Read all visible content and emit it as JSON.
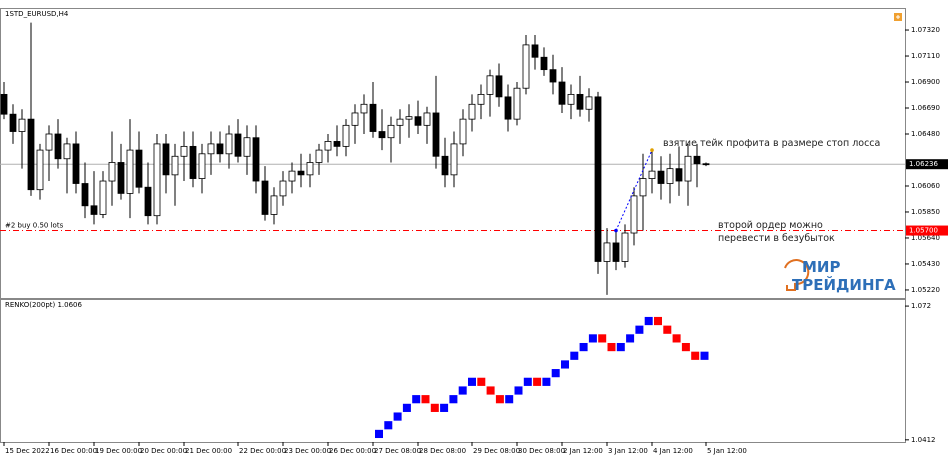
{
  "chart_data": [
    {
      "type": "candlestick",
      "title": "1STD_EURUSD,H4",
      "bull_color": "#ffffff",
      "bear_color": "#000000",
      "ylim": [
        1.05155,
        1.07498
      ],
      "yticks": [
        {
          "value": 1.0732,
          "label": "1.07320"
        },
        {
          "value": 1.0711,
          "label": "1.07110"
        },
        {
          "value": 1.069,
          "label": "1.06900"
        },
        {
          "value": 1.0669,
          "label": "1.06690"
        },
        {
          "value": 1.0648,
          "label": "1.06480"
        },
        {
          "value": 1.0606,
          "label": "1.06060"
        },
        {
          "value": 1.0585,
          "label": "1.05850"
        },
        {
          "value": 1.0564,
          "label": "1.05640"
        },
        {
          "value": 1.0543,
          "label": "1.05430"
        },
        {
          "value": 1.0522,
          "label": "1.05220"
        }
      ],
      "current_price": {
        "value": 1.06236,
        "label": "1.06236"
      },
      "order": {
        "text": "#2 buy 0.50 lots",
        "value": 1.057,
        "label": "1.05700",
        "color": "#ff0000"
      },
      "trade_arrow": {
        "from": 1.057,
        "to": 1.0635,
        "color": "#0000ff"
      },
      "annotations": [
        "взятие тейк профита в размере стоп лосса",
        "второй ордер можно перевести в безубыток"
      ],
      "logo": [
        "МИР",
        "ТРЕЙДИНГА"
      ],
      "categories": [
        "15 Dec 2022",
        null,
        null,
        null,
        null,
        "16 Dec 00:00",
        null,
        null,
        null,
        null,
        "19 Dec 00:00",
        null,
        null,
        null,
        null,
        "20 Dec 00:00",
        null,
        null,
        null,
        null,
        "21 Dec 00:00",
        null,
        null,
        null,
        null,
        null,
        "22 Dec 00:00",
        null,
        null,
        null,
        null,
        "23 Dec 00:00",
        null,
        null,
        null,
        null,
        "26 Dec 00:00",
        null,
        null,
        null,
        null,
        "27 Dec 08:00",
        null,
        null,
        null,
        null,
        "28 Dec 08:00",
        null,
        null,
        null,
        null,
        null,
        "29 Dec 08:00",
        null,
        null,
        null,
        null,
        "30 Dec 08:00",
        null,
        null,
        null,
        null,
        "2 Jan 12:00",
        null,
        null,
        null,
        null,
        "3 Jan 12:00",
        null,
        null,
        null,
        null,
        "4 Jan 12:00",
        null,
        null,
        null,
        null,
        null,
        "5 Jan 12:00"
      ],
      "ohlc": [
        [
          1.068,
          1.069,
          1.066,
          1.0664
        ],
        [
          1.0664,
          1.0672,
          1.064,
          1.065
        ],
        [
          1.065,
          1.0668,
          1.062,
          1.066
        ],
        [
          1.066,
          1.0738,
          1.0598,
          1.0603
        ],
        [
          1.0603,
          1.064,
          1.0595,
          1.0635
        ],
        [
          1.0635,
          1.0655,
          1.061,
          1.0648
        ],
        [
          1.0648,
          1.066,
          1.062,
          1.0628
        ],
        [
          1.0628,
          1.0645,
          1.06,
          1.064
        ],
        [
          1.064,
          1.065,
          1.06,
          1.0608
        ],
        [
          1.0608,
          1.0625,
          1.058,
          1.059
        ],
        [
          1.059,
          1.0618,
          1.0575,
          1.0583
        ],
        [
          1.0583,
          1.0618,
          1.058,
          1.061
        ],
        [
          1.061,
          1.065,
          1.059,
          1.0625
        ],
        [
          1.0625,
          1.064,
          1.0595,
          1.06
        ],
        [
          1.06,
          1.066,
          1.058,
          1.0635
        ],
        [
          1.0635,
          1.065,
          1.06,
          1.0605
        ],
        [
          1.0605,
          1.0625,
          1.0575,
          1.0582
        ],
        [
          1.0582,
          1.0648,
          1.0575,
          1.064
        ],
        [
          1.064,
          1.0648,
          1.06,
          1.0615
        ],
        [
          1.0615,
          1.064,
          1.059,
          1.063
        ],
        [
          1.063,
          1.065,
          1.061,
          1.0638
        ],
        [
          1.0638,
          1.065,
          1.0605,
          1.0612
        ],
        [
          1.0612,
          1.064,
          1.06,
          1.0632
        ],
        [
          1.0632,
          1.065,
          1.0615,
          1.064
        ],
        [
          1.064,
          1.065,
          1.0625,
          1.0632
        ],
        [
          1.0632,
          1.0655,
          1.062,
          1.0648
        ],
        [
          1.0648,
          1.066,
          1.0625,
          1.063
        ],
        [
          1.063,
          1.0655,
          1.0615,
          1.0645
        ],
        [
          1.0645,
          1.0655,
          1.06,
          1.061
        ],
        [
          1.061,
          1.0622,
          1.0578,
          1.0583
        ],
        [
          1.0583,
          1.0605,
          1.0575,
          1.0598
        ],
        [
          1.0598,
          1.0618,
          1.059,
          1.061
        ],
        [
          1.061,
          1.0625,
          1.06,
          1.0618
        ],
        [
          1.0618,
          1.0632,
          1.0605,
          1.0615
        ],
        [
          1.0615,
          1.0632,
          1.0605,
          1.0625
        ],
        [
          1.0625,
          1.064,
          1.0615,
          1.0635
        ],
        [
          1.0635,
          1.0648,
          1.0625,
          1.0642
        ],
        [
          1.0642,
          1.0655,
          1.063,
          1.0638
        ],
        [
          1.0638,
          1.066,
          1.063,
          1.0655
        ],
        [
          1.0655,
          1.0672,
          1.064,
          1.0665
        ],
        [
          1.0665,
          1.068,
          1.0648,
          1.0672
        ],
        [
          1.0672,
          1.069,
          1.0645,
          1.065
        ],
        [
          1.065,
          1.0668,
          1.0635,
          1.0645
        ],
        [
          1.0645,
          1.0662,
          1.0625,
          1.0655
        ],
        [
          1.0655,
          1.0668,
          1.064,
          1.066
        ],
        [
          1.066,
          1.0672,
          1.0645,
          1.0662
        ],
        [
          1.0662,
          1.0675,
          1.0648,
          1.0655
        ],
        [
          1.0655,
          1.067,
          1.064,
          1.0665
        ],
        [
          1.0665,
          1.0695,
          1.062,
          1.063
        ],
        [
          1.063,
          1.0645,
          1.0605,
          1.0615
        ],
        [
          1.0615,
          1.065,
          1.0605,
          1.064
        ],
        [
          1.064,
          1.0668,
          1.063,
          1.066
        ],
        [
          1.066,
          1.068,
          1.065,
          1.0672
        ],
        [
          1.0672,
          1.0688,
          1.066,
          1.068
        ],
        [
          1.068,
          1.07,
          1.0662,
          1.0695
        ],
        [
          1.0695,
          1.0705,
          1.067,
          1.0678
        ],
        [
          1.0678,
          1.0688,
          1.065,
          1.066
        ],
        [
          1.066,
          1.069,
          1.0655,
          1.0685
        ],
        [
          1.0685,
          1.0728,
          1.068,
          1.072
        ],
        [
          1.072,
          1.0728,
          1.07,
          1.071
        ],
        [
          1.071,
          1.0718,
          1.0695,
          1.07
        ],
        [
          1.07,
          1.0712,
          1.068,
          1.069
        ],
        [
          1.069,
          1.0702,
          1.0665,
          1.0672
        ],
        [
          1.0672,
          1.0688,
          1.066,
          1.068
        ],
        [
          1.068,
          1.0695,
          1.0662,
          1.0668
        ],
        [
          1.0668,
          1.0685,
          1.0658,
          1.0678
        ],
        [
          1.0678,
          1.0682,
          1.0535,
          1.0545
        ],
        [
          1.0545,
          1.0572,
          1.0518,
          1.056
        ],
        [
          1.056,
          1.057,
          1.0538,
          1.0545
        ],
        [
          1.0545,
          1.0575,
          1.054,
          1.0568
        ],
        [
          1.0568,
          1.0605,
          1.0558,
          1.0598
        ],
        [
          1.0598,
          1.0632,
          1.057,
          1.0612
        ],
        [
          1.0612,
          1.0635,
          1.06,
          1.0618
        ],
        [
          1.0618,
          1.063,
          1.0595,
          1.0608
        ],
        [
          1.0608,
          1.0632,
          1.0592,
          1.062
        ],
        [
          1.062,
          1.0638,
          1.0598,
          1.061
        ],
        [
          1.061,
          1.064,
          1.059,
          1.063
        ],
        [
          1.063,
          1.064,
          1.0605,
          1.0624
        ],
        [
          1.0624,
          1.0625,
          1.0622,
          1.06236
        ]
      ]
    },
    {
      "type": "renko",
      "title": "RENKO(200pt) 1.0606",
      "brick_size": 0.002,
      "up_color": "#0000ff",
      "down_color": "#ff0000",
      "ylim": [
        1.0407,
        1.0734
      ],
      "yticks": [
        1.072,
        1.0412
      ],
      "values": [
        1.0435,
        1.0455,
        1.0475,
        1.0495,
        1.0515,
        1.0495,
        1.0475,
        1.0495,
        1.0515,
        1.0535,
        1.0555,
        1.0535,
        1.0515,
        1.0495,
        1.0515,
        1.0535,
        1.0555,
        1.0535,
        1.0555,
        1.0575,
        1.0595,
        1.0615,
        1.0635,
        1.0655,
        1.0635,
        1.0615,
        1.0635,
        1.0655,
        1.0675,
        1.0695,
        1.0675,
        1.0655,
        1.0635,
        1.0615,
        1.0595,
        1.0615
      ]
    }
  ]
}
